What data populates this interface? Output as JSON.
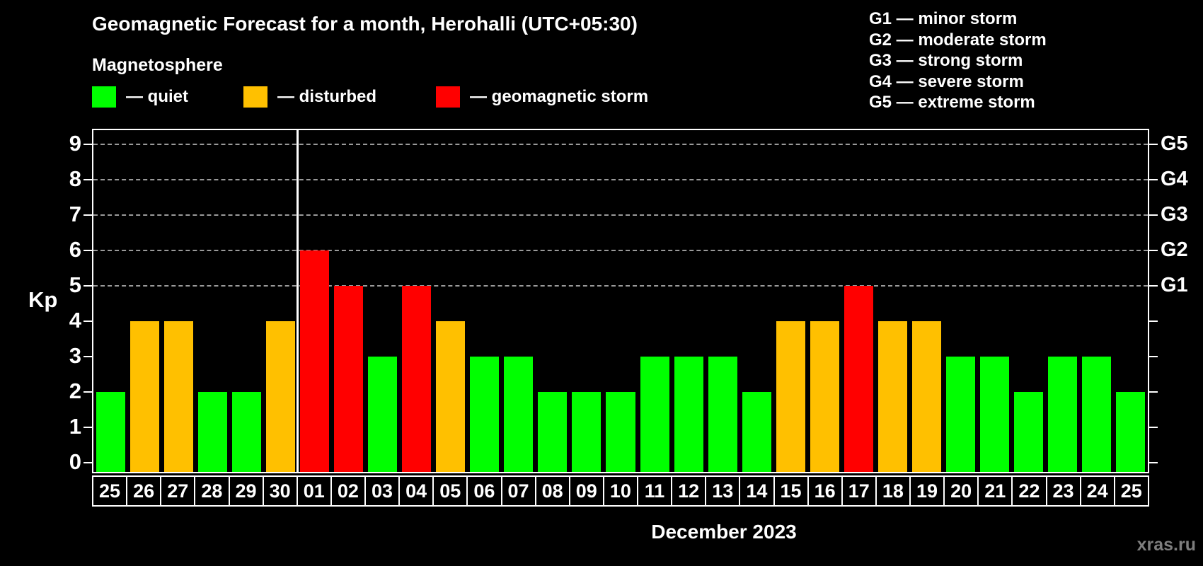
{
  "header": {
    "title": "Geomagnetic Forecast for a month, Herohalli (UTC+05:30)",
    "subtitle": "Magnetosphere"
  },
  "legend": {
    "items": [
      {
        "key": "quiet",
        "label": "— quiet",
        "color": "#00ff00"
      },
      {
        "key": "disturbed",
        "label": "— disturbed",
        "color": "#ffc000"
      },
      {
        "key": "storm",
        "label": "— geomagnetic storm",
        "color": "#ff0000"
      }
    ]
  },
  "g_scale_legend": {
    "items": [
      "G1 — minor storm",
      "G2 — moderate storm",
      "G3 — strong storm",
      "G4 — severe storm",
      "G5 — extreme storm"
    ]
  },
  "chart_data": {
    "type": "bar",
    "title": "Geomagnetic Forecast for a month, Herohalli (UTC+05:30)",
    "ylabel": "Kp",
    "xlabel": "December 2023",
    "ylim": [
      0,
      9.4
    ],
    "yticks": [
      0,
      1,
      2,
      3,
      4,
      5,
      6,
      7,
      8,
      9
    ],
    "gridlines_at": [
      5,
      6,
      7,
      8,
      9
    ],
    "grid": "dashed horizontal lines at storm levels only",
    "legend_position": "top",
    "categories": [
      "25",
      "26",
      "27",
      "28",
      "29",
      "30",
      "01",
      "02",
      "03",
      "04",
      "05",
      "06",
      "07",
      "08",
      "09",
      "10",
      "11",
      "12",
      "13",
      "14",
      "15",
      "16",
      "17",
      "18",
      "19",
      "20",
      "21",
      "22",
      "23",
      "24",
      "25"
    ],
    "values": [
      2,
      4,
      4,
      2,
      2,
      4,
      6,
      5,
      3,
      5,
      4,
      3,
      3,
      2,
      2,
      2,
      3,
      3,
      3,
      2,
      4,
      4,
      5,
      4,
      4,
      3,
      3,
      2,
      3,
      3,
      2
    ],
    "month_separator_after_index": 5,
    "g_labels": [
      {
        "kp": 5,
        "label": "G1"
      },
      {
        "kp": 6,
        "label": "G2"
      },
      {
        "kp": 7,
        "label": "G3"
      },
      {
        "kp": 8,
        "label": "G4"
      },
      {
        "kp": 9,
        "label": "G5"
      }
    ],
    "color_rule": {
      "quiet": "Kp <= 3",
      "disturbed": "Kp = 4",
      "storm": "Kp >= 5"
    }
  },
  "footer": {
    "month_label": "December 2023",
    "watermark": "xras.ru"
  },
  "colors": {
    "background": "#000000",
    "quiet": "#00ff00",
    "disturbed": "#ffc000",
    "storm": "#ff0000",
    "frame": "#ffffff",
    "grid": "#9a9a9a",
    "watermark": "#7e7e7e"
  }
}
